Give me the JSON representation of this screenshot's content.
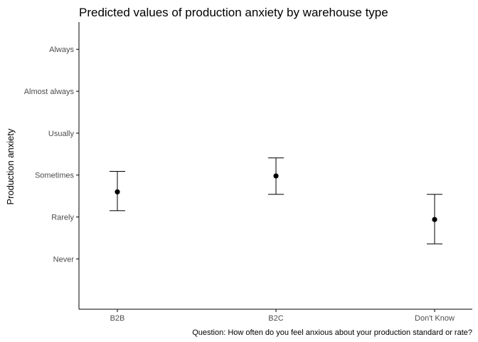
{
  "chart_data": {
    "type": "scatter",
    "title": "Predicted values of production anxiety by warehouse type",
    "ylabel": "Production anxiety",
    "xlabel": "",
    "caption": "Question: How often do you feel anxious about your production standard or rate?",
    "categories": [
      "B2B",
      "B2C",
      "Don't Know"
    ],
    "y_tick_values": [
      0,
      1,
      2,
      3,
      4,
      5
    ],
    "y_tick_labels": [
      "Never",
      "Rarely",
      "Sometimes",
      "Usually",
      "Almost always",
      "Always"
    ],
    "ylim": [
      -1.2,
      5.65
    ],
    "grid": false,
    "values": [
      1.6,
      1.98,
      0.94
    ],
    "ci_low": [
      1.15,
      1.54,
      0.36
    ],
    "ci_high": [
      2.09,
      2.41,
      1.54
    ],
    "colors": {
      "point": "#000000",
      "axis": "#000000",
      "tick_text": "#4d4d4d"
    }
  }
}
